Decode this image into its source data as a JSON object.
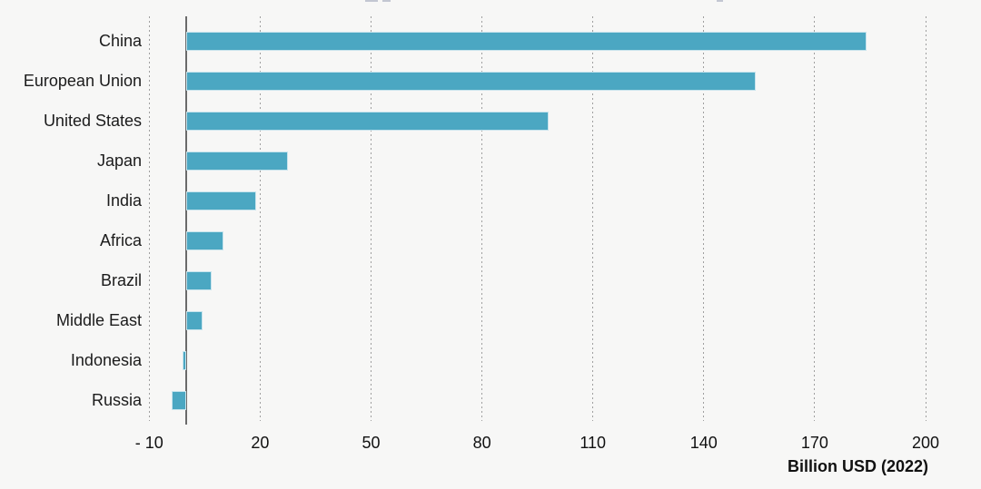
{
  "chart_data": {
    "type": "bar",
    "orientation": "horizontal",
    "title": "",
    "xlabel": "Billion USD (2022)",
    "ylabel": "",
    "categories": [
      "China",
      "European Union",
      "United States",
      "Japan",
      "India",
      "Africa",
      "Brazil",
      "Middle East",
      "Indonesia",
      "Russia"
    ],
    "values": [
      184,
      154,
      98,
      27.5,
      19,
      10,
      7,
      4.5,
      -1,
      -4
    ],
    "xlim": [
      -10,
      200
    ],
    "xticks": [
      -10,
      20,
      50,
      80,
      110,
      140,
      170,
      200
    ],
    "xtick_labels": [
      "- 10",
      "20",
      "50",
      "80",
      "110",
      "140",
      "170",
      "200"
    ],
    "grid": "vertical-dotted-gridlines-on",
    "legend": "none",
    "bar_color": "#4ba7c2",
    "background_color": "#f7f7f6",
    "zero_axis_color": "#6a6a6a"
  }
}
